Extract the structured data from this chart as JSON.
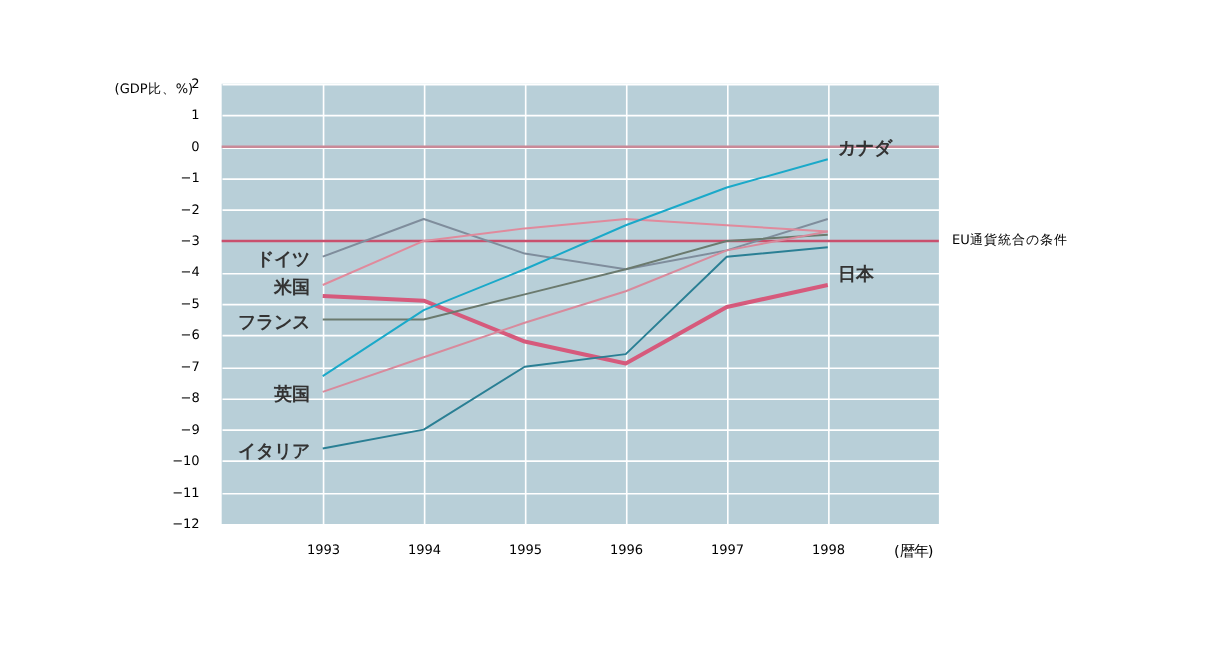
{
  "chart_data": {
    "type": "line",
    "ylabel": "(GDP比、%)",
    "xlabel": "(暦年)",
    "x": [
      1993,
      1994,
      1995,
      1996,
      1997,
      1998
    ],
    "xlim": [
      1992,
      1999.1
    ],
    "xticks": [
      1993,
      1994,
      1995,
      1996,
      1997,
      1998
    ],
    "ylim": [
      -12,
      2
    ],
    "yticks": [
      -12,
      -11,
      -10,
      -9,
      -8,
      -7,
      -6,
      -5,
      -4,
      -3,
      -2,
      -1,
      0,
      1,
      2
    ],
    "grid": true,
    "marker": "none",
    "line_style": "solid",
    "series": [
      {
        "name": "ドイツ",
        "color": "#7f8d9c",
        "values": [
          -3.5,
          -2.3,
          -3.4,
          -3.9,
          -3.3,
          -2.3
        ]
      },
      {
        "name": "米国",
        "color": "#e08a9c",
        "values": [
          -4.4,
          -3.0,
          -2.6,
          -2.3,
          -2.5,
          -2.7
        ]
      },
      {
        "name": "日本",
        "color": "#d65a7c",
        "values": [
          -4.75,
          -4.9,
          -6.2,
          -6.9,
          -5.1,
          -4.4
        ]
      },
      {
        "name": "フランス",
        "color": "#6b7a6e",
        "values": [
          -5.5,
          -5.5,
          -4.7,
          -3.9,
          -3.0,
          -2.8
        ]
      },
      {
        "name": "英国",
        "color": "#d88a9c",
        "values": [
          -7.8,
          -6.7,
          -5.6,
          -4.6,
          -3.3,
          -2.7
        ]
      },
      {
        "name": "カナダ",
        "color": "#1aa9c9",
        "values": [
          -7.3,
          -5.2,
          -3.9,
          -2.5,
          -1.3,
          -0.4
        ]
      },
      {
        "name": "イタリア",
        "color": "#2a7f94",
        "values": [
          -9.6,
          -9.0,
          -7.0,
          -6.6,
          -3.5,
          -3.2
        ]
      }
    ],
    "ref_lines": [
      {
        "axis": "y",
        "value": 0,
        "label": null,
        "color": "#c98a98"
      },
      {
        "axis": "y",
        "value": -3,
        "label": "EU通貨統合の条件",
        "color": "#c9506e"
      }
    ]
  }
}
